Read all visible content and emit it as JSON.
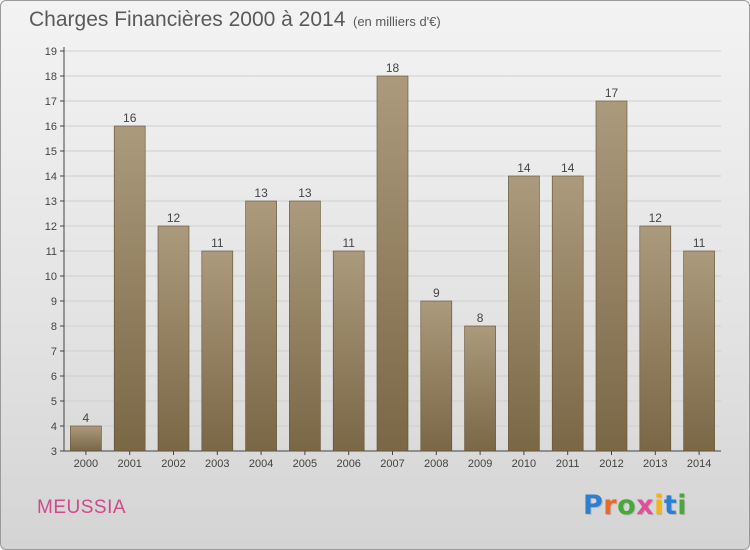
{
  "header": {
    "title": "Charges Financières 2000 à 2014",
    "subtitle": "(en milliers d'€)"
  },
  "commune": "MEUSSIA",
  "brand": {
    "name": "Proxiti",
    "letters": [
      {
        "ch": "P",
        "color": "#2f7fd0"
      },
      {
        "ch": "r",
        "color": "#e9692c"
      },
      {
        "ch": "o",
        "color": "#49a83a"
      },
      {
        "ch": "x",
        "color": "#e14d9a"
      },
      {
        "ch": "i",
        "color": "#f1b41c"
      },
      {
        "ch": "t",
        "color": "#2f7fd0"
      },
      {
        "ch": "i",
        "color": "#49a83a"
      }
    ]
  },
  "colors": {
    "bar_top": "#ab9a7c",
    "bar_bottom": "#7a6746",
    "grid": "#cfcfcf",
    "axis": "#444444",
    "commune": "#d04a8a"
  },
  "chart_data": {
    "type": "bar",
    "categories": [
      "2000",
      "2001",
      "2002",
      "2003",
      "2004",
      "2005",
      "2006",
      "2007",
      "2008",
      "2009",
      "2010",
      "2011",
      "2012",
      "2013",
      "2014"
    ],
    "values": [
      4,
      16,
      12,
      11,
      13,
      13,
      11,
      18,
      9,
      8,
      14,
      14,
      17,
      12,
      11
    ],
    "title": "Charges Financières 2000 à 2014",
    "subtitle": "(en milliers d'€)",
    "xlabel": "",
    "ylabel": "",
    "ylim": [
      3,
      19
    ],
    "yticks": [
      3,
      4,
      5,
      6,
      7,
      8,
      9,
      10,
      11,
      12,
      13,
      14,
      15,
      16,
      17,
      18,
      19
    ],
    "grid": true,
    "legend": "none",
    "data_labels": true
  }
}
